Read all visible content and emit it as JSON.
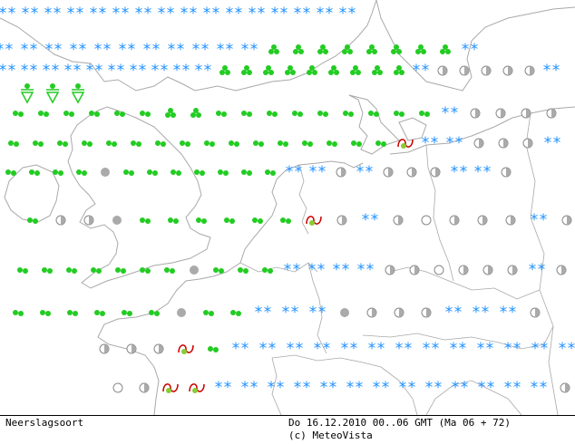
{
  "footer": {
    "map_type": "Neerslagsoort",
    "valid_time": "Do 16.12.2010 00..06 GMT (Ma 06 + 72)",
    "copyright": "(c) MeteoVista"
  },
  "colors": {
    "snow": "#1e90ff",
    "rain": "#22cc22",
    "hail": "#22cc22",
    "freezing": "#cc0000",
    "dry_fill": "#aaaaaa",
    "coast": "#a9a9a9"
  },
  "legend_symbols": {
    "snow": "two-asterisks-icon",
    "rain": "two-green-dots-icon",
    "shower": "green-cluster-icon",
    "hail": "green-triangle-icon",
    "freezing_rain": "red-wave-icon",
    "dry": "half-filled-circle-icon",
    "clear": "empty-circle-icon",
    "fog": "grey-filled-circle-icon"
  },
  "symbol_rows": [
    "SSSSSSSSSSSSSSSS",
    "SSSSSSSSSSSPPPPPPPPS",
    "SSSSSSSSSSPPPPPPPPPSDDDDDS",
    "HHH",
    "RRRRRRPPRRRRRRRRRSDDDDS",
    "RRRRRRRRRRRRRRRRZSSDDDSSD",
    "RRRRFRRRRRRRSSDSDDDSSD",
    "RDDFRRRRRRZDSDCDDDSD",
    "RRRRRRRFRRRSSSSDDCDDDSD",
    "RRRRRRFRRSSSFDDDSSSD",
    "DDDZRSSSSSSSSSSSSSD",
    "CDZZSSSSSSSSSSSSSDF"
  ]
}
